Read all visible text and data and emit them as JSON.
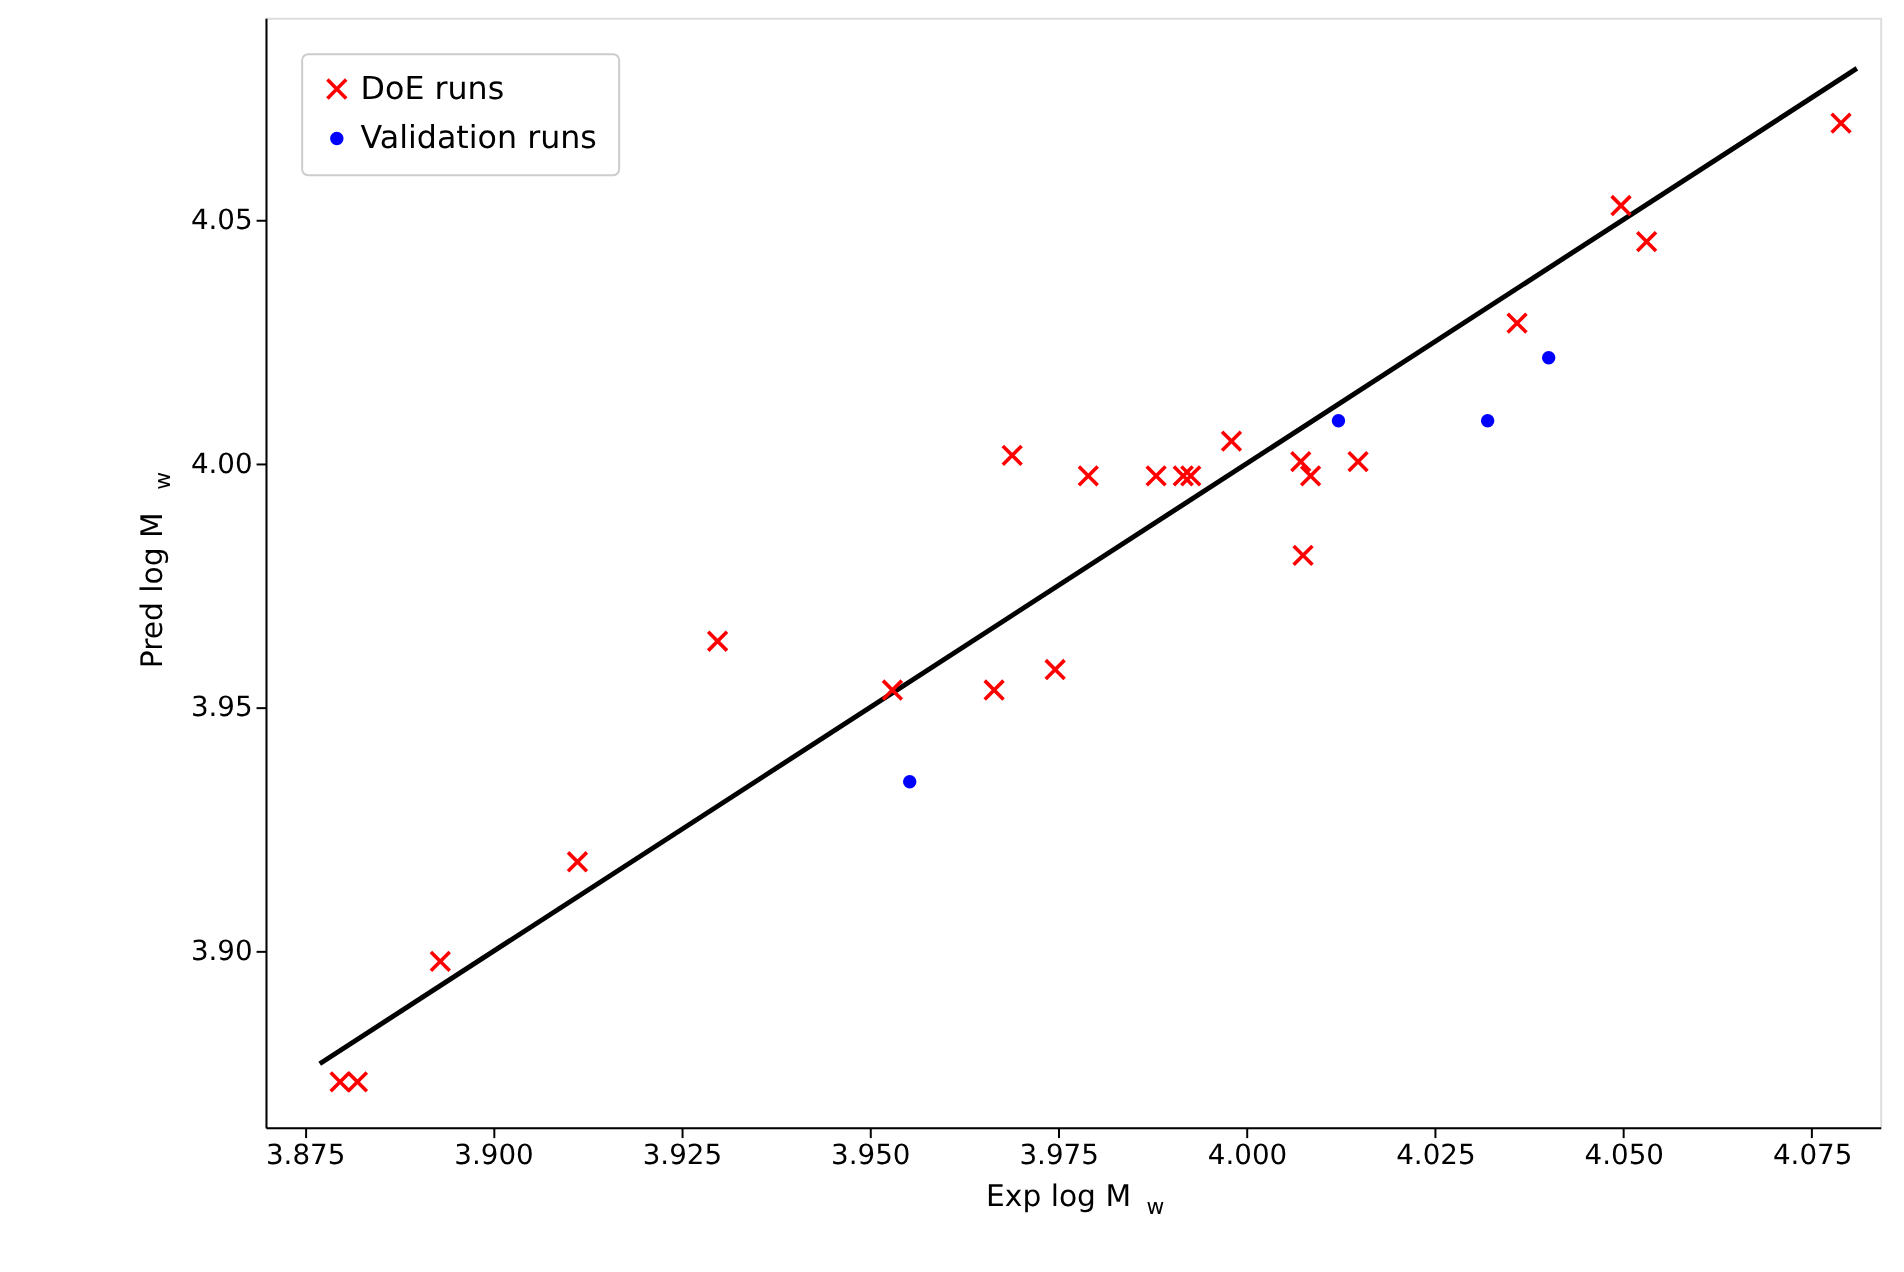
{
  "chart_data": {
    "type": "scatter",
    "xlabel": "Exp log M$_{w}$",
    "ylabel": "Pred log M$_{w}$",
    "xlim": [
      3.8698,
      4.0841
    ],
    "ylim": [
      3.864,
      4.0914
    ],
    "xticks": [
      {
        "value": 3.875,
        "label": "3.875"
      },
      {
        "value": 3.9,
        "label": "3.900"
      },
      {
        "value": 3.925,
        "label": "3.925"
      },
      {
        "value": 3.95,
        "label": "3.950"
      },
      {
        "value": 3.975,
        "label": "3.975"
      },
      {
        "value": 4.0,
        "label": "4.000"
      },
      {
        "value": 4.025,
        "label": "4.025"
      },
      {
        "value": 4.05,
        "label": "4.050"
      },
      {
        "value": 4.075,
        "label": "4.075"
      }
    ],
    "yticks": [
      {
        "value": 3.9,
        "label": "3.90"
      },
      {
        "value": 3.95,
        "label": "3.95"
      },
      {
        "value": 4.0,
        "label": "4.00"
      },
      {
        "value": 4.05,
        "label": "4.05"
      }
    ],
    "grid": false,
    "legend": "top left",
    "series": [
      {
        "type": "line",
        "color": "#000000",
        "line_style": "solid",
        "x": [
          3.877,
          4.081
        ],
        "values": [
          3.877,
          4.081
        ]
      },
      {
        "name": "DoE runs",
        "color": "#ff0000",
        "marker": "cross",
        "x": [
          3.8797,
          3.882,
          3.893,
          3.9112,
          3.9298,
          3.953,
          3.9665,
          3.9689,
          3.9746,
          3.979,
          3.988,
          3.9916,
          3.9926,
          3.998,
          4.0072,
          4.0075,
          4.0085,
          4.0148,
          4.0359,
          4.0497,
          4.0531,
          4.0789
        ],
        "values": [
          3.8733,
          3.8733,
          3.898,
          3.9184,
          3.9636,
          3.9536,
          3.9536,
          4.0017,
          3.9578,
          3.9975,
          3.9975,
          3.9975,
          3.9975,
          4.0046,
          4.0004,
          3.9812,
          3.9975,
          4.0004,
          4.0288,
          4.0529,
          4.0455,
          4.0698
        ]
      },
      {
        "name": "Validation runs",
        "color": "#0000ff",
        "marker": "circle",
        "x": [
          3.9553,
          4.0122,
          4.032,
          4.0401
        ],
        "values": [
          3.9348,
          4.0088,
          4.0088,
          4.0217
        ]
      }
    ]
  }
}
